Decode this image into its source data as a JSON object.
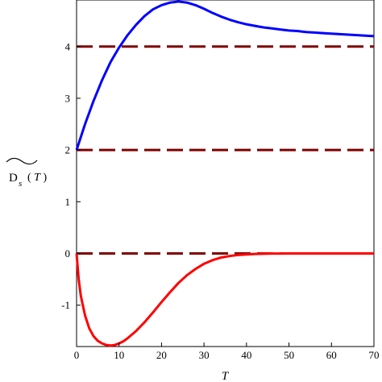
{
  "chart_data": {
    "type": "line",
    "xlabel": "T",
    "ylabel": {
      "main": "D",
      "subscript": "s",
      "argument_open": "(",
      "argument_var": "T",
      "argument_close": ")",
      "accent": "tilde"
    },
    "xlim": [
      0,
      70
    ],
    "ylim": [
      -1.8,
      4.9
    ],
    "x_ticks": [
      "0",
      "10",
      "20",
      "30",
      "40",
      "50",
      "60",
      "70"
    ],
    "y_ticks": [
      "-1",
      "0",
      "1",
      "2",
      "3",
      "4"
    ],
    "grid": false,
    "legend": "none",
    "series": [
      {
        "color": "#0000ff",
        "style": "solid",
        "x": [
          0,
          2,
          4,
          6,
          8,
          10,
          12,
          14,
          16,
          18,
          20,
          22,
          24,
          26,
          28,
          30,
          32,
          34,
          36,
          38,
          40,
          42,
          44,
          46,
          48,
          50,
          52,
          54,
          56,
          58,
          60,
          62,
          64,
          66,
          68,
          70
        ],
        "y": [
          2.0,
          2.5,
          2.95,
          3.35,
          3.7,
          3.98,
          4.22,
          4.42,
          4.59,
          4.72,
          4.8,
          4.85,
          4.87,
          4.85,
          4.8,
          4.73,
          4.65,
          4.58,
          4.52,
          4.47,
          4.43,
          4.4,
          4.37,
          4.35,
          4.33,
          4.31,
          4.3,
          4.28,
          4.27,
          4.26,
          4.25,
          4.24,
          4.23,
          4.22,
          4.21,
          4.2
        ]
      },
      {
        "color": "#ff0000",
        "style": "solid",
        "x": [
          0,
          0.5,
          1,
          2,
          3,
          4,
          5,
          6,
          7,
          8,
          9,
          10,
          11,
          12,
          14,
          16,
          18,
          20,
          22,
          24,
          26,
          28,
          30,
          32,
          34,
          36,
          38,
          40,
          42,
          44,
          46,
          48,
          50,
          55,
          60,
          65,
          70
        ],
        "y": [
          0,
          -0.5,
          -0.82,
          -1.2,
          -1.45,
          -1.6,
          -1.69,
          -1.74,
          -1.77,
          -1.78,
          -1.77,
          -1.74,
          -1.7,
          -1.64,
          -1.5,
          -1.33,
          -1.14,
          -0.94,
          -0.75,
          -0.57,
          -0.42,
          -0.3,
          -0.2,
          -0.13,
          -0.08,
          -0.05,
          -0.03,
          -0.02,
          -0.01,
          -0.006,
          -0.003,
          -0.002,
          -0.001,
          0,
          0,
          0,
          0
        ]
      },
      {
        "color": "#800000",
        "style": "dashed",
        "x": [
          0,
          70
        ],
        "y": [
          4,
          4
        ]
      },
      {
        "color": "#800000",
        "style": "dashed",
        "x": [
          0,
          70
        ],
        "y": [
          2,
          2
        ]
      },
      {
        "color": "#800000",
        "style": "dashed",
        "x": [
          0,
          70
        ],
        "y": [
          0,
          0
        ]
      }
    ]
  }
}
